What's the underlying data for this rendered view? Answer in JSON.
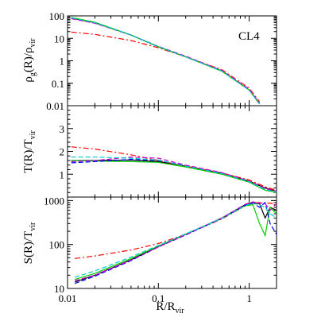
{
  "chart_data": [
    {
      "type": "line",
      "panel": "top",
      "ylabel_main": "ρ",
      "ylabel_sub": "g",
      "ylabel_rest": "(R)/ρ",
      "ylabel_sub2": "vir",
      "xscale": "log",
      "yscale": "log",
      "xlim": [
        0.01,
        2
      ],
      "ylim": [
        0.01,
        100
      ],
      "yticks": [
        "100",
        "10",
        "1",
        "0.1",
        "0.01"
      ],
      "annotation": "CL4",
      "series": [
        {
          "color": "#000000",
          "dash": "solid",
          "x": [
            0.011,
            0.02,
            0.05,
            0.1,
            0.2,
            0.5,
            1.0,
            1.3
          ],
          "y": [
            80,
            50,
            14,
            4.2,
            1.5,
            0.35,
            0.05,
            0.012
          ]
        },
        {
          "color": "#ff0000",
          "dash": "dashdot",
          "x": [
            0.011,
            0.02,
            0.05,
            0.1,
            0.2,
            0.5,
            1.0,
            1.3
          ],
          "y": [
            19,
            15,
            8,
            3.8,
            1.5,
            0.4,
            0.06,
            0.015
          ]
        },
        {
          "color": "#00cc00",
          "dash": "solid",
          "x": [
            0.011,
            0.02,
            0.05,
            0.1,
            0.2,
            0.5,
            1.0,
            1.3
          ],
          "y": [
            85,
            52,
            14,
            4.2,
            1.5,
            0.34,
            0.05,
            0.012
          ]
        },
        {
          "color": "#0000ff",
          "dash": "dashed",
          "x": [
            0.011,
            0.02,
            0.05,
            0.1,
            0.2,
            0.5,
            1.0,
            1.3
          ],
          "y": [
            78,
            48,
            14,
            4.3,
            1.5,
            0.36,
            0.05,
            0.013
          ]
        },
        {
          "color": "#cc00cc",
          "dash": "dashed",
          "x": [
            0.011,
            0.02,
            0.05,
            0.1,
            0.2,
            0.5,
            1.0,
            1.3
          ],
          "y": [
            75,
            47,
            14,
            4.4,
            1.6,
            0.37,
            0.055,
            0.013
          ]
        },
        {
          "color": "#00cccc",
          "dash": "dashed",
          "x": [
            0.011,
            0.02,
            0.05,
            0.1,
            0.2,
            0.5,
            1.0,
            1.3
          ],
          "y": [
            82,
            50,
            14,
            4.3,
            1.5,
            0.35,
            0.05,
            0.012
          ]
        }
      ]
    },
    {
      "type": "line",
      "panel": "middle",
      "ylabel_main": "T(R)/T",
      "ylabel_sub": "vir",
      "xscale": "log",
      "xlim": [
        0.01,
        2
      ],
      "ylim": [
        0,
        4
      ],
      "yticks": [
        "3",
        "2",
        "1"
      ],
      "series": [
        {
          "color": "#000000",
          "dash": "solid",
          "x": [
            0.011,
            0.02,
            0.05,
            0.1,
            0.2,
            0.5,
            1.0,
            1.5,
            2.0
          ],
          "y": [
            1.6,
            1.6,
            1.62,
            1.55,
            1.35,
            1.05,
            0.7,
            0.4,
            0.25
          ]
        },
        {
          "color": "#ff0000",
          "dash": "dashdot",
          "x": [
            0.011,
            0.02,
            0.05,
            0.1,
            0.2,
            0.5,
            1.0,
            1.5,
            2.0
          ],
          "y": [
            2.2,
            2.1,
            1.85,
            1.6,
            1.35,
            1.05,
            0.75,
            0.45,
            0.3
          ]
        },
        {
          "color": "#00cc00",
          "dash": "solid",
          "x": [
            0.011,
            0.02,
            0.05,
            0.1,
            0.2,
            0.5,
            1.0,
            1.5,
            2.0
          ],
          "y": [
            1.6,
            1.58,
            1.55,
            1.52,
            1.32,
            1.0,
            0.65,
            0.3,
            0.2
          ]
        },
        {
          "color": "#0000ff",
          "dash": "dashed",
          "x": [
            0.011,
            0.02,
            0.05,
            0.1,
            0.2,
            0.5,
            1.0,
            1.5,
            2.0
          ],
          "y": [
            1.5,
            1.55,
            1.65,
            1.6,
            1.38,
            1.05,
            0.68,
            0.35,
            0.22
          ]
        },
        {
          "color": "#cc00cc",
          "dash": "dashed",
          "x": [
            0.011,
            0.02,
            0.05,
            0.1,
            0.2,
            0.5,
            1.0,
            1.5,
            2.0
          ],
          "y": [
            1.55,
            1.6,
            1.75,
            1.7,
            1.4,
            1.07,
            0.7,
            0.38,
            0.25
          ]
        },
        {
          "color": "#00cccc",
          "dash": "dashed",
          "x": [
            0.011,
            0.02,
            0.05,
            0.1,
            0.2,
            0.5,
            1.0,
            1.5,
            2.0
          ],
          "y": [
            1.75,
            1.75,
            1.7,
            1.62,
            1.36,
            1.03,
            0.67,
            0.33,
            0.22
          ]
        }
      ]
    },
    {
      "type": "line",
      "panel": "bottom",
      "ylabel_main": "S(R)/T",
      "ylabel_sub": "vir",
      "xlabel_main": "R/R",
      "xlabel_sub": "vir",
      "xscale": "log",
      "yscale": "log",
      "xlim": [
        0.01,
        2
      ],
      "ylim": [
        10,
        1200
      ],
      "yticks": [
        "1000",
        "100",
        "10"
      ],
      "xticks": [
        "0.01",
        "0.1",
        "1"
      ],
      "series": [
        {
          "color": "#000000",
          "dash": "solid",
          "x": [
            0.012,
            0.02,
            0.05,
            0.1,
            0.2,
            0.5,
            0.9,
            1.1,
            1.3,
            1.5,
            1.7,
            2.0
          ],
          "y": [
            14,
            20,
            45,
            90,
            170,
            400,
            800,
            900,
            850,
            400,
            700,
            600
          ]
        },
        {
          "color": "#ff0000",
          "dash": "dashdot",
          "x": [
            0.012,
            0.02,
            0.05,
            0.1,
            0.2,
            0.5,
            0.9,
            1.1,
            1.3,
            1.5,
            1.7,
            2.0
          ],
          "y": [
            48,
            55,
            75,
            105,
            170,
            380,
            750,
            870,
            900,
            850,
            880,
            800
          ]
        },
        {
          "color": "#00cc00",
          "dash": "solid",
          "x": [
            0.012,
            0.02,
            0.05,
            0.1,
            0.2,
            0.5,
            0.9,
            1.1,
            1.3,
            1.5,
            1.7,
            2.0
          ],
          "y": [
            16,
            22,
            48,
            92,
            170,
            390,
            760,
            800,
            300,
            160,
            700,
            500
          ]
        },
        {
          "color": "#0000ff",
          "dash": "dashed",
          "x": [
            0.012,
            0.02,
            0.05,
            0.1,
            0.2,
            0.5,
            0.9,
            1.1,
            1.3,
            1.5,
            1.7,
            2.0
          ],
          "y": [
            13,
            19,
            43,
            88,
            165,
            395,
            780,
            880,
            700,
            900,
            300,
            170
          ]
        },
        {
          "color": "#cc00cc",
          "dash": "dashed",
          "x": [
            0.012,
            0.02,
            0.05,
            0.1,
            0.2,
            0.5,
            0.9,
            1.1,
            1.3,
            1.5,
            1.7,
            2.0
          ],
          "y": [
            15,
            20,
            44,
            88,
            168,
            400,
            820,
            930,
            880,
            850,
            600,
            850
          ]
        },
        {
          "color": "#00cccc",
          "dash": "dashed",
          "x": [
            0.012,
            0.02,
            0.05,
            0.1,
            0.2,
            0.5,
            0.9,
            1.1,
            1.3,
            1.5,
            1.7,
            2.0
          ],
          "y": [
            18,
            25,
            52,
            95,
            175,
            390,
            770,
            860,
            800,
            700,
            500,
            400
          ]
        }
      ]
    }
  ]
}
